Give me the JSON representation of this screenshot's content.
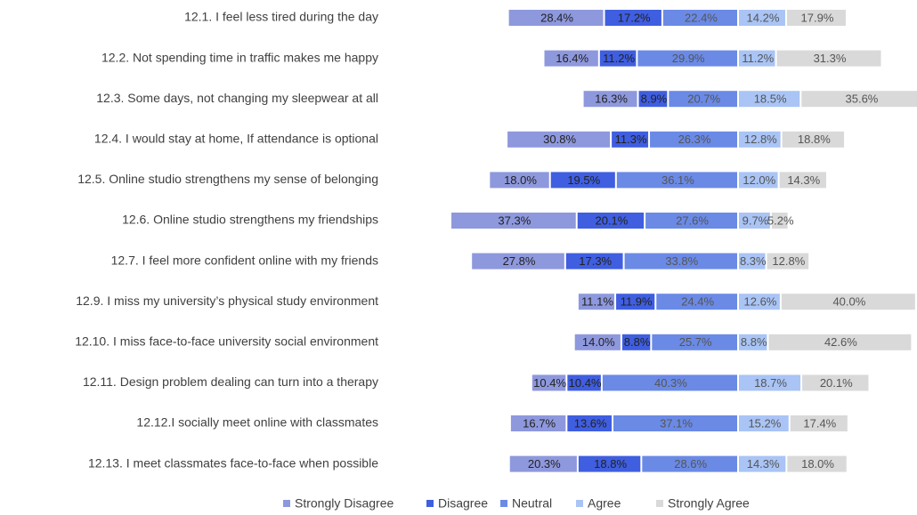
{
  "chart_data": {
    "type": "diverging-stacked-bar",
    "categories": [
      "12.1. I feel less tired during the day",
      "12.2. Not spending time in traffic makes me happy",
      "12.3. Some days, not changing my sleepwear at all",
      "12.4. I would stay at home, If attendance is optional",
      "12.5. Online studio strengthens my sense of belonging",
      "12.6. Online studio strengthens my friendships",
      "12.7. I feel more confident online with my friends",
      "12.9. I miss my university’s physical study environment",
      "12.10. I miss face-to-face university social environment",
      "12.11. Design problem dealing can turn into a therapy",
      "12.12.I socially meet online with classmates",
      "12.13. I meet classmates face-to-face when possible"
    ],
    "series": [
      {
        "name": "Strongly Disagree",
        "color": "#8e98dd",
        "values": [
          28.4,
          16.4,
          16.3,
          30.8,
          18.0,
          37.3,
          27.8,
          11.1,
          14.0,
          10.4,
          16.7,
          20.3
        ],
        "value_labels": [
          "28.4%",
          "16.4%",
          "16.3%",
          "30.8%",
          "18.0%",
          "37.3%",
          "27.8%",
          "11.1%",
          "14.0%",
          "10.4%",
          "16.7%",
          "20.3%"
        ]
      },
      {
        "name": "Disagree",
        "color": "#3f5ee0",
        "values": [
          17.2,
          11.2,
          8.9,
          11.3,
          19.5,
          20.1,
          17.3,
          11.9,
          8.8,
          10.4,
          13.6,
          18.8
        ],
        "value_labels": [
          "17.2%",
          "11.2%",
          "8.9%",
          "11.3%",
          "19.5%",
          "20.1%",
          "17.3%",
          "11.9%",
          "8.8%",
          "10.4%",
          "13.6%",
          "18.8%"
        ]
      },
      {
        "name": "Neutral",
        "color": "#6a8ae6",
        "values": [
          22.4,
          29.9,
          20.7,
          26.3,
          36.1,
          27.6,
          33.8,
          24.4,
          25.7,
          40.3,
          37.1,
          28.6
        ],
        "value_labels": [
          "22.4%",
          "29.9%",
          "20.7%",
          "26.3%",
          "36.1%",
          "27.6%",
          "33.8%",
          "24.4%",
          "25.7%",
          "40.3%",
          "37.1%",
          "28.6%"
        ]
      },
      {
        "name": "Agree",
        "color": "#a9c4f5",
        "values": [
          14.2,
          11.2,
          18.5,
          12.8,
          12.0,
          9.7,
          8.3,
          12.6,
          8.8,
          18.7,
          15.2,
          14.3
        ],
        "value_labels": [
          "14.2%",
          "11.2%",
          "18.5%",
          "12.8%",
          "12.0%",
          "9.7%",
          "8.3%",
          "12.6%",
          "8.8%",
          "18.7%",
          "15.2%",
          "14.3%"
        ]
      },
      {
        "name": "Strongly Agree",
        "color": "#d9d9d9",
        "values": [
          17.9,
          31.3,
          35.6,
          18.8,
          14.3,
          5.2,
          12.8,
          40.0,
          42.6,
          20.1,
          17.4,
          18.0
        ],
        "value_labels": [
          "17.9%",
          "31.3%",
          "35.6%",
          "18.8%",
          "14.3%",
          "5.2%",
          "12.8%",
          "40.0%",
          "42.6%",
          "20.1%",
          "17.4%",
          "18.0%"
        ]
      }
    ]
  }
}
